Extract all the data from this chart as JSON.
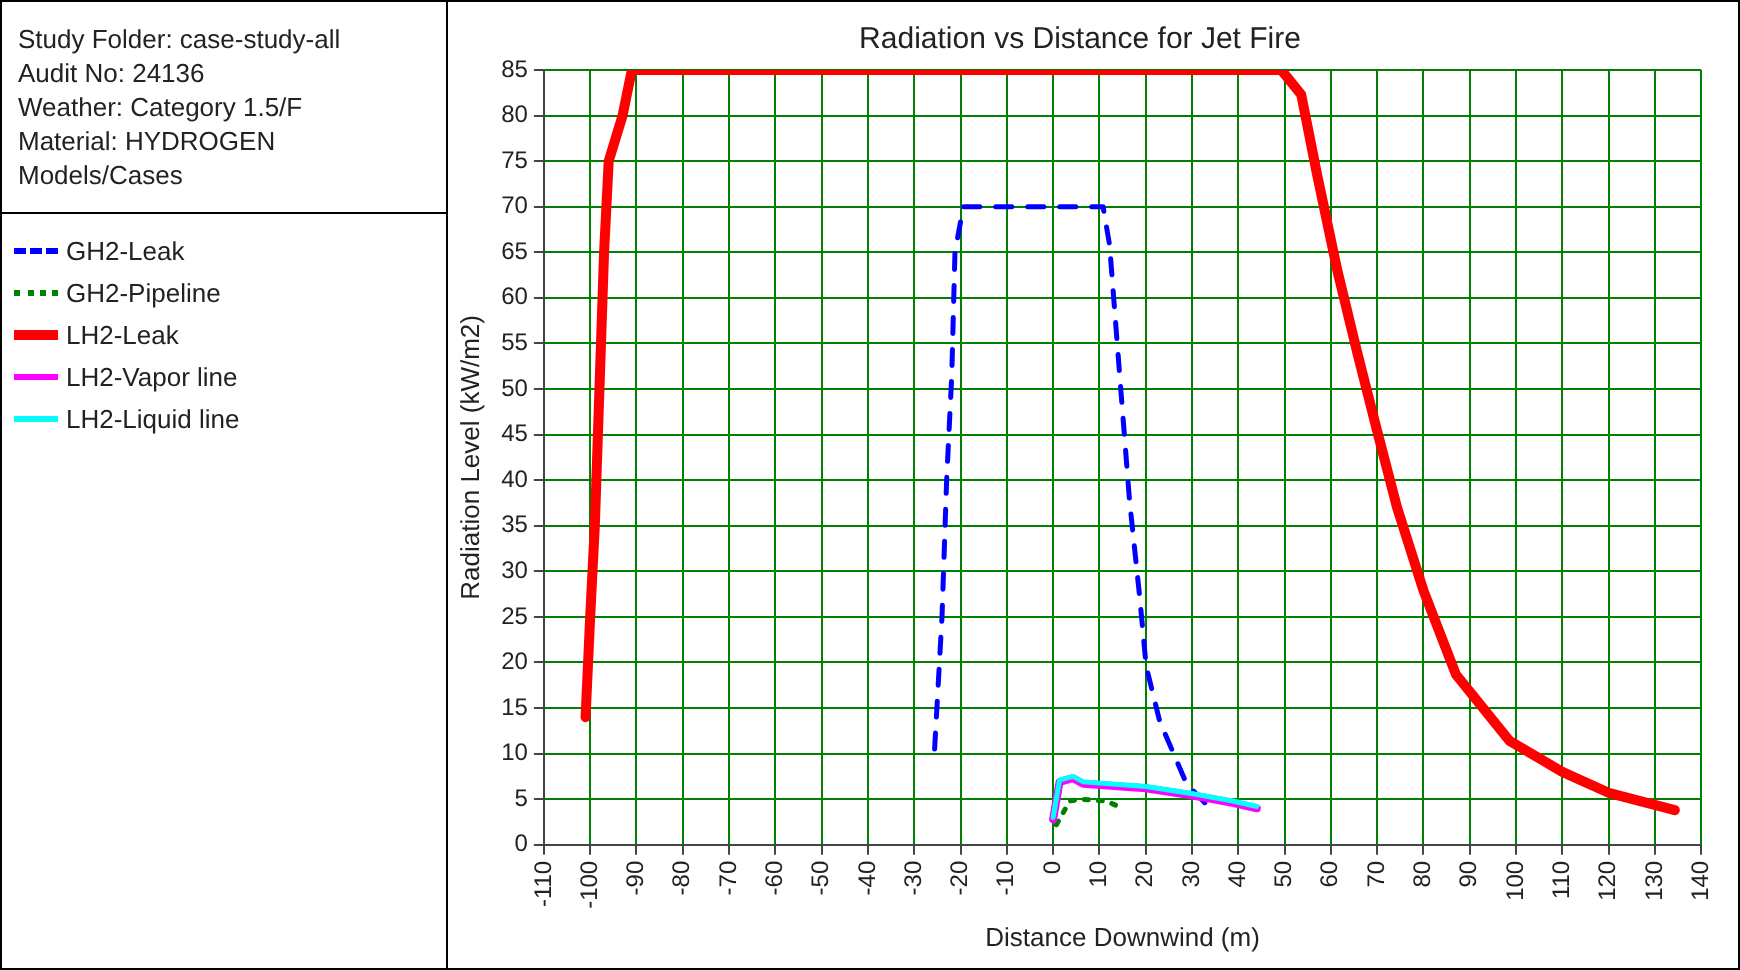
{
  "chart_data": {
    "type": "line",
    "title": "Radiation vs Distance for Jet Fire",
    "xlabel": "Distance Downwind (m)",
    "ylabel": "Radiation Level (kW/m2)",
    "annotations": [
      "Study Folder: case-study-all",
      "Audit No: 24136",
      "Weather: Category 1.5/F",
      "Material: HYDROGEN"
    ],
    "legend_title": "Models/Cases",
    "xlim": [
      -110,
      140
    ],
    "xticks": [
      -110,
      -100,
      -90,
      -80,
      -70,
      -60,
      -50,
      -40,
      -30,
      -20,
      -10,
      0,
      10,
      20,
      30,
      40,
      50,
      60,
      70,
      80,
      90,
      100,
      110,
      120,
      130,
      140
    ],
    "ylim": [
      0,
      85
    ],
    "yticks": [
      0,
      5,
      10,
      15,
      20,
      25,
      30,
      35,
      40,
      45,
      50,
      55,
      60,
      65,
      70,
      75,
      80,
      85
    ],
    "grid": true,
    "legend": "left",
    "marker": "none",
    "series": [
      {
        "name": "GH2-Leak",
        "color": "#0000ff",
        "line_style": "dashed",
        "x": [
          -25.6,
          -24,
          -23,
          -21.9,
          -21.2,
          -19.4,
          10.8,
          12.2,
          14.4,
          16.5,
          18.7,
          20.1,
          23,
          28.8,
          34.5
        ],
        "values": [
          10.5,
          25,
          40,
          51.4,
          65,
          70,
          70,
          65.8,
          51.4,
          37.8,
          27.2,
          19.6,
          13.6,
          6.7,
          3.7
        ]
      },
      {
        "name": "GH2-Pipeline",
        "color": "#008000",
        "line_style": "dotted",
        "x": [
          0.7,
          3.6,
          5.8,
          11.5,
          15
        ],
        "values": [
          2.2,
          4.8,
          5,
          4.8,
          4
        ]
      },
      {
        "name": "LH2-Leak",
        "color": "#ff0000",
        "line_style": "solid",
        "x": [
          -101,
          -100,
          -99,
          -98,
          -97,
          -96,
          -93,
          -91,
          49.3,
          53.6,
          57,
          61.4,
          65.7,
          70,
          74.3,
          80,
          87,
          98.6,
          110,
          120,
          134.3
        ],
        "values": [
          14,
          25,
          35,
          50,
          65,
          75,
          80,
          85,
          85,
          82.3,
          73.6,
          63,
          54,
          45.4,
          37,
          27.9,
          18.7,
          11.4,
          8,
          5.7,
          3.8
        ]
      },
      {
        "name": "LH2-Vapor line",
        "color": "#ff00ff",
        "line_style": "solid",
        "x": [
          0,
          1.4,
          4.3,
          6.5,
          20,
          30.2,
          38.8,
          44
        ],
        "values": [
          2.8,
          6.9,
          7.3,
          6.7,
          6.2,
          5.4,
          4.6,
          4
        ]
      },
      {
        "name": "LH2-Liquid line",
        "color": "#00ffff",
        "line_style": "solid",
        "x": [
          0,
          1.4,
          4.3,
          6.5,
          20,
          30.2,
          38.8,
          44
        ],
        "values": [
          3,
          7.1,
          7.5,
          6.9,
          6.4,
          5.6,
          4.8,
          4.2
        ]
      }
    ]
  }
}
